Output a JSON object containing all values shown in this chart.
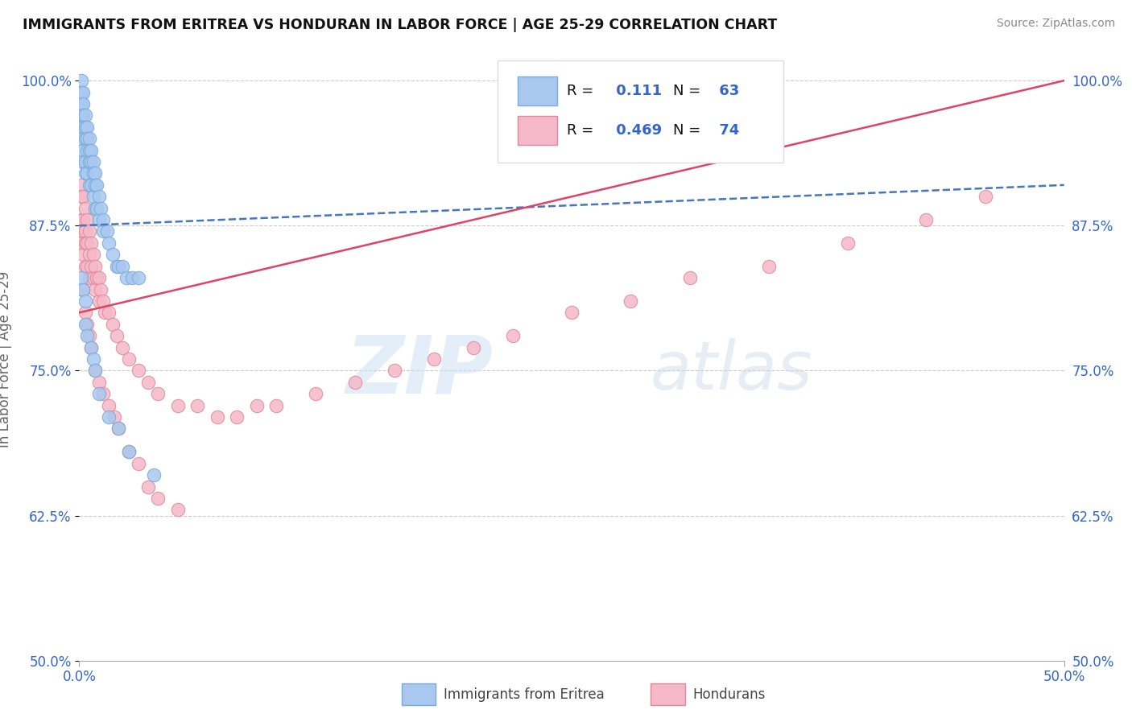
{
  "title": "IMMIGRANTS FROM ERITREA VS HONDURAN IN LABOR FORCE | AGE 25-29 CORRELATION CHART",
  "source": "Source: ZipAtlas.com",
  "ylabel_label": "In Labor Force | Age 25-29",
  "ytick_labels": [
    "100.0%",
    "87.5%",
    "75.0%",
    "62.5%",
    "50.0%"
  ],
  "ytick_values": [
    1.0,
    0.875,
    0.75,
    0.625,
    0.5
  ],
  "xmin": 0.0,
  "xmax": 0.5,
  "ymin": 0.5,
  "ymax": 1.02,
  "legend_blue_r": "0.111",
  "legend_blue_n": "63",
  "legend_pink_r": "0.469",
  "legend_pink_n": "74",
  "legend_label_blue": "Immigrants from Eritrea",
  "legend_label_pink": "Hondurans",
  "blue_color": "#a8c8f0",
  "blue_edge": "#7aaad8",
  "pink_color": "#f5b8c8",
  "pink_edge": "#e08898",
  "trend_blue_color": "#4477bb",
  "trend_pink_color": "#dd4466",
  "watermark_zip": "ZIP",
  "watermark_atlas": "atlas",
  "blue_x": [
    0.001,
    0.001,
    0.001,
    0.001,
    0.001,
    0.001,
    0.002,
    0.002,
    0.002,
    0.002,
    0.002,
    0.002,
    0.003,
    0.003,
    0.003,
    0.003,
    0.003,
    0.004,
    0.004,
    0.004,
    0.004,
    0.005,
    0.005,
    0.005,
    0.005,
    0.006,
    0.006,
    0.006,
    0.007,
    0.007,
    0.007,
    0.008,
    0.008,
    0.008,
    0.009,
    0.009,
    0.01,
    0.01,
    0.011,
    0.012,
    0.012,
    0.014,
    0.015,
    0.017,
    0.019,
    0.02,
    0.022,
    0.024,
    0.027,
    0.03,
    0.001,
    0.002,
    0.003,
    0.003,
    0.004,
    0.006,
    0.007,
    0.008,
    0.01,
    0.015,
    0.02,
    0.025,
    0.038
  ],
  "blue_y": [
    1.0,
    0.99,
    0.98,
    0.97,
    0.96,
    0.95,
    0.99,
    0.98,
    0.97,
    0.96,
    0.94,
    0.93,
    0.97,
    0.96,
    0.95,
    0.93,
    0.92,
    0.96,
    0.95,
    0.94,
    0.92,
    0.95,
    0.94,
    0.93,
    0.91,
    0.94,
    0.93,
    0.91,
    0.93,
    0.92,
    0.9,
    0.92,
    0.91,
    0.89,
    0.91,
    0.89,
    0.9,
    0.88,
    0.89,
    0.88,
    0.87,
    0.87,
    0.86,
    0.85,
    0.84,
    0.84,
    0.84,
    0.83,
    0.83,
    0.83,
    0.83,
    0.82,
    0.81,
    0.79,
    0.78,
    0.77,
    0.76,
    0.75,
    0.73,
    0.71,
    0.7,
    0.68,
    0.66
  ],
  "pink_x": [
    0.001,
    0.001,
    0.001,
    0.001,
    0.001,
    0.002,
    0.002,
    0.002,
    0.002,
    0.003,
    0.003,
    0.003,
    0.003,
    0.004,
    0.004,
    0.004,
    0.005,
    0.005,
    0.005,
    0.006,
    0.006,
    0.007,
    0.007,
    0.008,
    0.008,
    0.009,
    0.01,
    0.01,
    0.011,
    0.012,
    0.013,
    0.015,
    0.017,
    0.019,
    0.022,
    0.025,
    0.03,
    0.035,
    0.04,
    0.05,
    0.06,
    0.07,
    0.08,
    0.09,
    0.1,
    0.12,
    0.14,
    0.16,
    0.18,
    0.2,
    0.22,
    0.25,
    0.28,
    0.31,
    0.35,
    0.39,
    0.43,
    0.46,
    0.002,
    0.003,
    0.004,
    0.005,
    0.006,
    0.008,
    0.01,
    0.012,
    0.015,
    0.018,
    0.02,
    0.025,
    0.03,
    0.035,
    0.04,
    0.05
  ],
  "pink_y": [
    0.91,
    0.9,
    0.88,
    0.87,
    0.86,
    0.9,
    0.88,
    0.87,
    0.85,
    0.89,
    0.87,
    0.86,
    0.84,
    0.88,
    0.86,
    0.84,
    0.87,
    0.85,
    0.83,
    0.86,
    0.84,
    0.85,
    0.83,
    0.84,
    0.82,
    0.83,
    0.83,
    0.81,
    0.82,
    0.81,
    0.8,
    0.8,
    0.79,
    0.78,
    0.77,
    0.76,
    0.75,
    0.74,
    0.73,
    0.72,
    0.72,
    0.71,
    0.71,
    0.72,
    0.72,
    0.73,
    0.74,
    0.75,
    0.76,
    0.77,
    0.78,
    0.8,
    0.81,
    0.83,
    0.84,
    0.86,
    0.88,
    0.9,
    0.82,
    0.8,
    0.79,
    0.78,
    0.77,
    0.75,
    0.74,
    0.73,
    0.72,
    0.71,
    0.7,
    0.68,
    0.67,
    0.65,
    0.64,
    0.63
  ]
}
